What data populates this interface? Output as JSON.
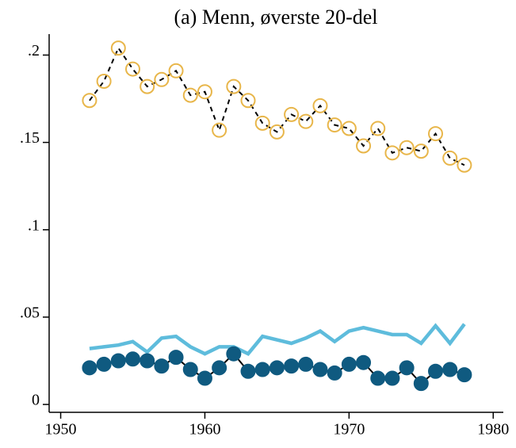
{
  "chart_data": {
    "type": "line",
    "title": "(a) Menn, øverste 20-del",
    "x": [
      1952,
      1953,
      1954,
      1955,
      1956,
      1957,
      1958,
      1959,
      1960,
      1961,
      1962,
      1963,
      1964,
      1965,
      1966,
      1967,
      1968,
      1969,
      1970,
      1971,
      1972,
      1973,
      1974,
      1975,
      1976,
      1977,
      1978
    ],
    "series": [
      {
        "color": "#e8b64a",
        "line_color": "#000000",
        "dash": true,
        "marker": "hollow-circle",
        "values": [
          0.174,
          0.185,
          0.204,
          0.192,
          0.182,
          0.186,
          0.191,
          0.177,
          0.179,
          0.157,
          0.182,
          0.174,
          0.161,
          0.156,
          0.166,
          0.162,
          0.171,
          0.16,
          0.158,
          0.148,
          0.158,
          0.144,
          0.147,
          0.145,
          0.155,
          0.141,
          0.137
        ]
      },
      {
        "color": "#5ebcdc",
        "line_color": "#5ebcdc",
        "dash": false,
        "marker": "none",
        "values": [
          0.032,
          0.033,
          0.034,
          0.036,
          0.03,
          0.038,
          0.039,
          0.033,
          0.029,
          0.033,
          0.033,
          0.029,
          0.039,
          0.037,
          0.035,
          0.038,
          0.042,
          0.036,
          0.042,
          0.044,
          0.042,
          0.04,
          0.04,
          0.035,
          0.045,
          0.035,
          0.046
        ]
      },
      {
        "color": "#0f5a80",
        "line_color": "#000000",
        "dash": false,
        "marker": "filled-circle",
        "values": [
          0.021,
          0.023,
          0.025,
          0.026,
          0.025,
          0.022,
          0.027,
          0.02,
          0.015,
          0.021,
          0.029,
          0.019,
          0.02,
          0.021,
          0.022,
          0.023,
          0.02,
          0.018,
          0.023,
          0.024,
          0.015,
          0.015,
          0.021,
          0.012,
          0.019,
          0.02,
          0.017
        ]
      }
    ],
    "xlim": [
      1949.2,
      1980.7
    ],
    "xticks": [
      1950,
      1960,
      1970,
      1980
    ],
    "ylim": [
      -0.0045,
      0.212
    ],
    "yticks": [
      0,
      {
        "value": 0.05,
        "label": ".05"
      },
      {
        "value": 0.1,
        "label": ".1"
      },
      {
        "value": 0.15,
        "label": ".15"
      },
      {
        "value": 0.2,
        "label": ".2"
      }
    ],
    "grid": false
  }
}
